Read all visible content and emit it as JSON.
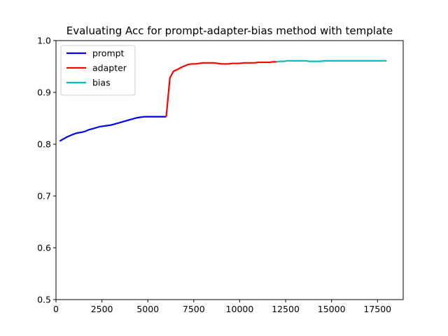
{
  "chart_data": {
    "type": "line",
    "title": "Evaluating Acc for prompt-adapter-bias method with template",
    "xlabel": "",
    "ylabel": "",
    "xlim": [
      0,
      18900
    ],
    "ylim": [
      0.5,
      1.0
    ],
    "xticks": [
      0,
      2500,
      5000,
      7500,
      10000,
      12500,
      15000,
      17500
    ],
    "yticks": [
      0.5,
      0.6,
      0.7,
      0.8,
      0.9,
      1.0
    ],
    "grid": false,
    "legend_position": "top-left",
    "series": [
      {
        "name": "prompt",
        "color": "#0000ff",
        "x": [
          200,
          400,
          600,
          800,
          1000,
          1200,
          1400,
          1600,
          1800,
          2000,
          2200,
          2400,
          2600,
          2800,
          3000,
          3200,
          3400,
          3600,
          3800,
          4000,
          4200,
          4400,
          4600,
          4800,
          5000,
          5200,
          5400,
          5600,
          5800,
          6000
        ],
        "y": [
          0.806,
          0.81,
          0.814,
          0.817,
          0.82,
          0.822,
          0.823,
          0.825,
          0.828,
          0.83,
          0.832,
          0.834,
          0.835,
          0.836,
          0.837,
          0.839,
          0.841,
          0.843,
          0.845,
          0.847,
          0.849,
          0.851,
          0.852,
          0.853,
          0.853,
          0.853,
          0.853,
          0.853,
          0.853,
          0.853
        ]
      },
      {
        "name": "adapter",
        "color": "#ff0000",
        "x": [
          6000,
          6200,
          6400,
          6600,
          6800,
          7000,
          7200,
          7400,
          7600,
          7800,
          8000,
          8200,
          8400,
          8600,
          8800,
          9000,
          9200,
          9400,
          9600,
          9800,
          10000,
          10200,
          10400,
          10600,
          10800,
          11000,
          11200,
          11400,
          11600,
          11800,
          12000
        ],
        "y": [
          0.853,
          0.928,
          0.941,
          0.944,
          0.948,
          0.951,
          0.954,
          0.955,
          0.955,
          0.956,
          0.957,
          0.957,
          0.957,
          0.957,
          0.956,
          0.955,
          0.955,
          0.955,
          0.956,
          0.956,
          0.956,
          0.957,
          0.957,
          0.957,
          0.957,
          0.958,
          0.958,
          0.958,
          0.958,
          0.959,
          0.959
        ]
      },
      {
        "name": "bias",
        "color": "#00bfbf",
        "x": [
          12000,
          12200,
          12400,
          12600,
          12800,
          13000,
          13200,
          13400,
          13600,
          13800,
          14000,
          14200,
          14400,
          14600,
          14800,
          15000,
          15200,
          15400,
          15600,
          15800,
          16000,
          16200,
          16400,
          16600,
          16800,
          17000,
          17200,
          17400,
          17600,
          17800,
          18000
        ],
        "y": [
          0.959,
          0.96,
          0.96,
          0.961,
          0.961,
          0.961,
          0.961,
          0.961,
          0.961,
          0.96,
          0.96,
          0.96,
          0.96,
          0.961,
          0.961,
          0.961,
          0.961,
          0.961,
          0.961,
          0.961,
          0.961,
          0.961,
          0.961,
          0.961,
          0.961,
          0.961,
          0.961,
          0.961,
          0.961,
          0.961,
          0.961
        ]
      }
    ]
  }
}
